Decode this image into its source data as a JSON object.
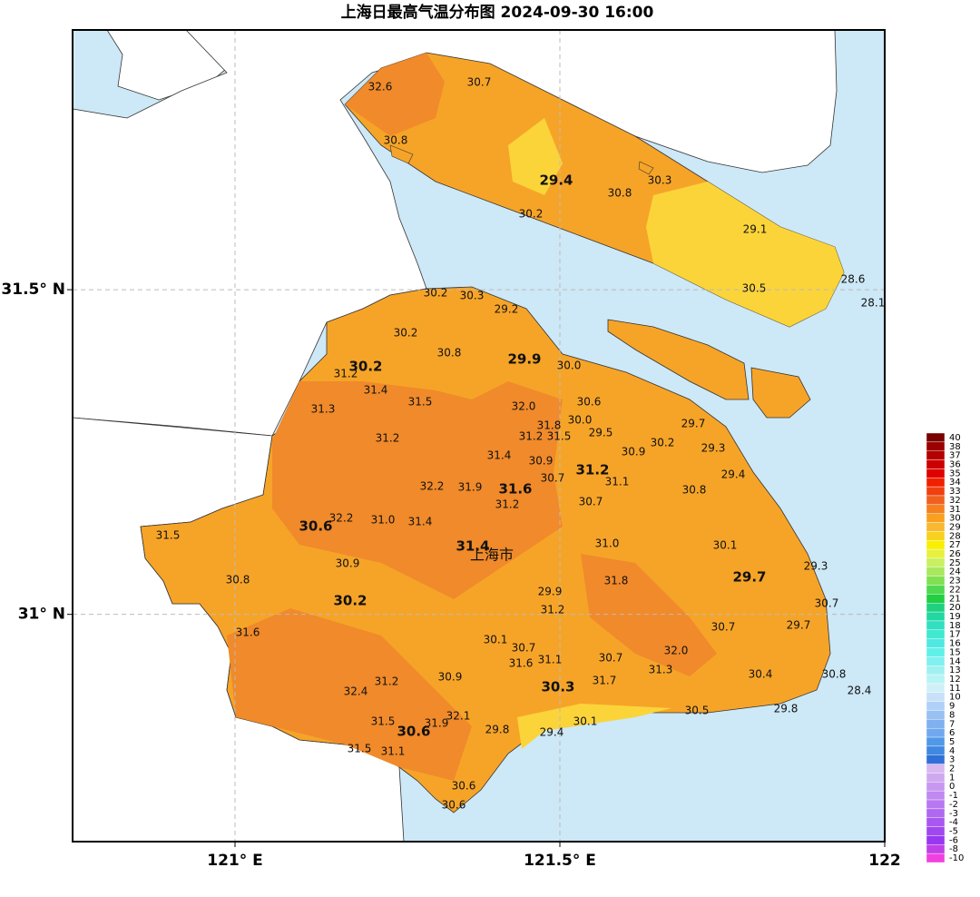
{
  "map": {
    "title": "上海日最高气温分布图 2024-09-30 16:00",
    "xlim": [
      120.75,
      122
    ],
    "ylim": [
      30.65,
      31.9
    ],
    "xticks": [
      {
        "value": 121,
        "label": "121° E"
      },
      {
        "value": 121.5,
        "label": "121.5° E"
      },
      122
    ],
    "yticks": [
      {
        "value": 31,
        "label": "31° N"
      },
      {
        "value": 31.5,
        "label": "31.5° N"
      }
    ],
    "grid": true,
    "city": "上海市",
    "stations": [
      "32.6",
      "30.7",
      "30.8",
      "29.4",
      "30.8",
      "30.3",
      "30.2",
      "29.1",
      "28.6",
      "28.1",
      "30.5",
      "30.2",
      "30.3",
      "29.2",
      "30.2",
      "30.8",
      "29.9",
      "30.0",
      "30.2",
      "31.2",
      "31.4",
      "31.5",
      "32.0",
      "30.6",
      "31.3",
      "30.0",
      "31.8",
      "29.5",
      "29.7",
      "31.2",
      "31.5",
      "31.2",
      "30.2",
      "29.3",
      "30.9",
      "31.4",
      "30.9",
      "31.2",
      "29.4",
      "30.7",
      "31.1",
      "32.2",
      "31.9",
      "31.6",
      "30.8",
      "31.2",
      "30.7",
      "32.2",
      "31.0",
      "31.4",
      "30.6",
      "31.5",
      "31.4",
      "31.0",
      "30.1",
      "30.9",
      "29.3",
      "29.7",
      "31.8",
      "30.8",
      "30.2",
      "29.9",
      "30.7",
      "31.2",
      "29.7",
      "30.7",
      "31.6",
      "30.1",
      "30.7",
      "32.0",
      "31.1",
      "30.7",
      "31.6",
      "30.4",
      "30.8",
      "31.3",
      "30.9",
      "31.2",
      "31.7",
      "30.3",
      "28.4",
      "32.4",
      "30.5",
      "29.8",
      "32.1",
      "31.5",
      "31.9",
      "30.1",
      "30.6",
      "29.8",
      "29.4",
      "31.5",
      "31.1",
      "30.6",
      "30.6"
    ],
    "colorbar": {
      "levels": [
        40,
        38,
        37,
        36,
        35,
        34,
        33,
        32,
        31,
        30,
        29,
        28,
        27,
        26,
        25,
        24,
        23,
        22,
        21,
        20,
        19,
        18,
        17,
        16,
        15,
        14,
        13,
        12,
        11,
        10,
        9,
        8,
        7,
        6,
        5,
        4,
        3,
        2,
        1,
        0,
        -1,
        -2,
        -3,
        -4,
        -5,
        -6,
        -8,
        -10
      ],
      "colors": [
        "#7a0000",
        "#9a0000",
        "#b40000",
        "#cc0000",
        "#e00000",
        "#f02000",
        "#f04010",
        "#f06020",
        "#f58020",
        "#f8a020",
        "#f8b830",
        "#f8d020",
        "#f8f000",
        "#e8f040",
        "#c8f060",
        "#a8e860",
        "#80e050",
        "#50d850",
        "#20d040",
        "#20d080",
        "#20d8a0",
        "#30e0c0",
        "#40e8d0",
        "#50e8e0",
        "#60f0e8",
        "#80f0f0",
        "#a0f0f0",
        "#b8f4f4",
        "#d0f0f8",
        "#c8e0f8",
        "#b0d0f8",
        "#98c0f0",
        "#80b0f0",
        "#70a8f0",
        "#5098e8",
        "#4088e0",
        "#3070d8",
        "#d8b8f0",
        "#d0a8f0",
        "#c898f0",
        "#c088f0",
        "#b878f0",
        "#b068f0",
        "#a858f0",
        "#a048f0",
        "#9838f0",
        "#c040e8",
        "#f040e0"
      ]
    }
  }
}
